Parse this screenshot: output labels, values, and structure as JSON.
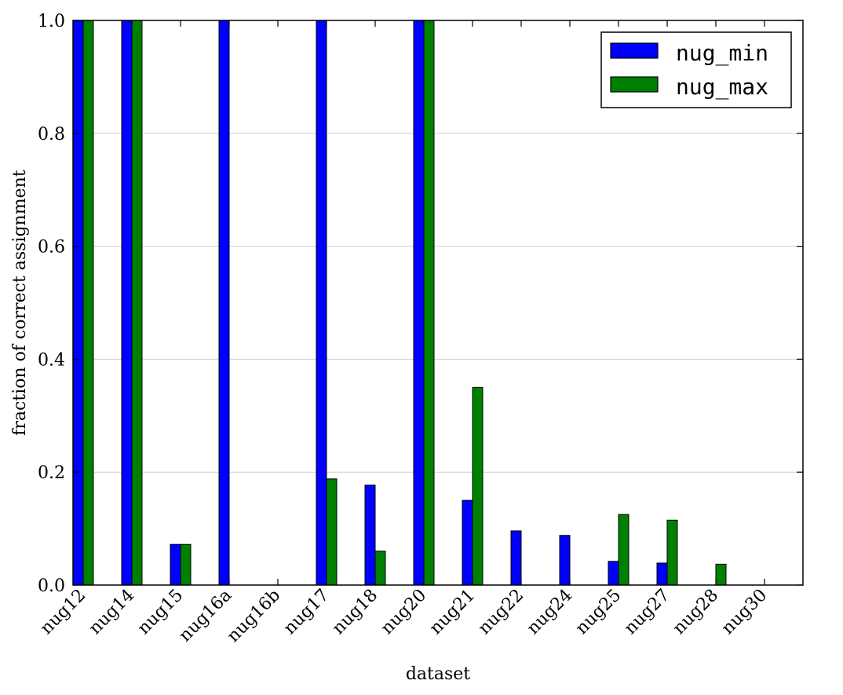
{
  "chart_data": {
    "type": "bar",
    "title": "",
    "xlabel": "dataset",
    "ylabel": "fraction of correct assignment",
    "ylim": [
      0.0,
      1.0
    ],
    "yticks": [
      "0.0",
      "0.2",
      "0.4",
      "0.6",
      "0.8",
      "1.0"
    ],
    "grid": "horizontal",
    "legend_position": "top-right",
    "categories": [
      "nug12",
      "nug14",
      "nug15",
      "nug16a",
      "nug16b",
      "nug17",
      "nug18",
      "nug20",
      "nug21",
      "nug22",
      "nug24",
      "nug25",
      "nug27",
      "nug28",
      "nug30"
    ],
    "series": [
      {
        "name": "nug_min",
        "color": "#0000ff",
        "values": [
          1.0,
          1.0,
          0.072,
          1.0,
          0.0,
          1.0,
          0.177,
          1.0,
          0.15,
          0.096,
          0.088,
          0.042,
          0.039,
          0.0,
          0.0
        ]
      },
      {
        "name": "nug_max",
        "color": "#008000",
        "values": [
          1.0,
          1.0,
          0.072,
          0.0,
          0.0,
          0.188,
          0.06,
          1.0,
          0.35,
          0.0,
          0.0,
          0.125,
          0.115,
          0.037,
          0.0
        ]
      }
    ]
  }
}
